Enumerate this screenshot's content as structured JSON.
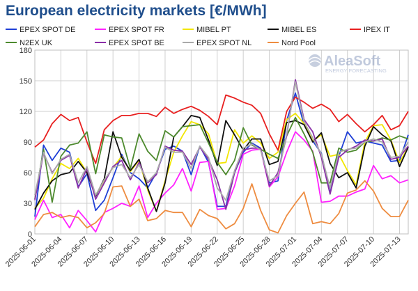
{
  "chart_data": {
    "type": "line",
    "title": "European electricity markets [€/MWh]",
    "xlabel": "",
    "ylabel": "",
    "ylim": [
      0,
      180
    ],
    "yticks": [
      0,
      30,
      60,
      90,
      120,
      150,
      180
    ],
    "grid": true,
    "legend_position": "top",
    "x": [
      "2025-06-01",
      "2025-06-02",
      "2025-06-03",
      "2025-06-04",
      "2025-06-05",
      "2025-06-06",
      "2025-06-07",
      "2025-06-08",
      "2025-06-09",
      "2025-06-10",
      "2025-06-11",
      "2025-06-12",
      "2025-06-13",
      "2025-06-14",
      "2025-06-15",
      "2025-06-16",
      "2025-06-17",
      "2025-06-18",
      "2025-06-19",
      "2025-06-20",
      "2025-06-21",
      "2025-06-22",
      "2025-06-23",
      "2025-06-24",
      "2025-06-25",
      "2025-06-26",
      "2025-06-27",
      "2025-06-28",
      "2025-06-29",
      "2025-06-30",
      "2025-07-01",
      "2025-07-02",
      "2025-07-03",
      "2025-07-04",
      "2025-07-05",
      "2025-07-06",
      "2025-07-07",
      "2025-07-08",
      "2025-07-09",
      "2025-07-10",
      "2025-07-11",
      "2025-07-12",
      "2025-07-13",
      "2025-07-14"
    ],
    "xtick_labels": [
      "2025-06-01",
      "2025-06-04",
      "2025-06-07",
      "2025-06-10",
      "2025-06-13",
      "2025-06-16",
      "2025-06-19",
      "2025-06-22",
      "2025-06-25",
      "2025-06-28",
      "2025-07-01",
      "2025-07-04",
      "2025-07-07",
      "2025-07-10",
      "2025-07-13"
    ],
    "series": [
      {
        "name": "EPEX SPOT DE",
        "color": "#1f3fd6",
        "values": [
          17,
          87,
          72,
          84,
          80,
          46,
          59,
          23,
          33,
          55,
          78,
          60,
          54,
          45,
          60,
          83,
          86,
          81,
          58,
          86,
          70,
          27,
          27,
          60,
          80,
          89,
          84,
          50,
          52,
          111,
          138,
          107,
          91,
          79,
          40,
          76,
          100,
          89,
          91,
          89,
          87,
          71,
          72,
          97
        ]
      },
      {
        "name": "EPEX SPOT FR",
        "color": "#ff22ff",
        "values": [
          14,
          33,
          16,
          19,
          6,
          23,
          13,
          2,
          21,
          25,
          30,
          27,
          47,
          16,
          30,
          40,
          48,
          64,
          42,
          70,
          71,
          24,
          25,
          47,
          78,
          82,
          83,
          46,
          56,
          80,
          100,
          92,
          81,
          31,
          32,
          37,
          37,
          41,
          44,
          67,
          54,
          57,
          50,
          53
        ]
      },
      {
        "name": "MIBEL PT",
        "color": "#f2e600",
        "values": [
          25,
          35,
          54,
          69,
          64,
          74,
          60,
          38,
          52,
          65,
          76,
          61,
          72,
          43,
          22,
          52,
          80,
          96,
          110,
          107,
          98,
          69,
          70,
          102,
          89,
          96,
          89,
          74,
          80,
          112,
          118,
          108,
          91,
          97,
          76,
          78,
          62,
          48,
          90,
          106,
          107,
          92,
          70,
          85
        ]
      },
      {
        "name": "MIBEL ES",
        "color": "#111111",
        "values": [
          24,
          40,
          52,
          58,
          60,
          71,
          60,
          37,
          54,
          100,
          75,
          62,
          73,
          45,
          22,
          50,
          95,
          105,
          116,
          114,
          92,
          67,
          111,
          97,
          82,
          93,
          93,
          68,
          71,
          109,
          111,
          107,
          90,
          99,
          69,
          55,
          60,
          45,
          86,
          105,
          97,
          91,
          66,
          85
        ]
      },
      {
        "name": "IPEX IT",
        "color": "#e82020",
        "values": [
          85,
          92,
          108,
          117,
          111,
          114,
          90,
          69,
          102,
          111,
          116,
          116,
          118,
          118,
          115,
          124,
          118,
          122,
          125,
          121,
          115,
          107,
          136,
          133,
          129,
          126,
          118,
          98,
          82,
          120,
          134,
          129,
          123,
          127,
          122,
          110,
          117,
          108,
          100,
          107,
          116,
          102,
          106,
          120
        ]
      },
      {
        "name": "N2EX UK",
        "color": "#4d8a2e",
        "values": [
          34,
          83,
          31,
          76,
          87,
          89,
          100,
          59,
          97,
          95,
          94,
          64,
          98,
          81,
          72,
          101,
          95,
          105,
          106,
          107,
          89,
          70,
          58,
          72,
          104,
          87,
          83,
          78,
          74,
          96,
          114,
          98,
          80,
          50,
          50,
          84,
          80,
          82,
          90,
          91,
          94,
          92,
          96,
          93
        ]
      },
      {
        "name": "EPEX SPOT BE",
        "color": "#8a2fa8",
        "values": [
          33,
          79,
          60,
          72,
          77,
          45,
          64,
          34,
          50,
          66,
          72,
          53,
          70,
          50,
          58,
          86,
          82,
          81,
          68,
          85,
          73,
          53,
          24,
          60,
          82,
          84,
          84,
          47,
          60,
          96,
          151,
          112,
          100,
          75,
          39,
          75,
          82,
          86,
          92,
          91,
          93,
          73,
          75,
          86
        ]
      },
      {
        "name": "EPEX SPOT NL",
        "color": "#aaaaaa",
        "values": [
          38,
          80,
          59,
          73,
          78,
          50,
          66,
          38,
          53,
          65,
          68,
          55,
          68,
          51,
          60,
          85,
          80,
          80,
          64,
          86,
          75,
          45,
          33,
          62,
          84,
          88,
          82,
          52,
          57,
          98,
          149,
          110,
          94,
          78,
          45,
          80,
          83,
          84,
          90,
          93,
          90,
          75,
          76,
          90
        ]
      },
      {
        "name": "Nord Pool",
        "color": "#ee8c40",
        "values": [
          7,
          19,
          21,
          16,
          18,
          16,
          6,
          11,
          20,
          46,
          47,
          27,
          34,
          13,
          15,
          23,
          21,
          21,
          7,
          24,
          18,
          15,
          5,
          10,
          25,
          49,
          23,
          4,
          1,
          18,
          30,
          41,
          10,
          12,
          10,
          20,
          40,
          43,
          52,
          42,
          25,
          17,
          17,
          33
        ]
      }
    ],
    "legend": [
      "EPEX SPOT DE",
      "EPEX SPOT FR",
      "MIBEL PT",
      "MIBEL ES",
      "IPEX IT",
      "N2EX UK",
      "EPEX SPOT BE",
      "EPEX SPOT NL",
      "Nord Pool"
    ]
  },
  "logo": {
    "name": "AleaSoft",
    "tagline": "ENERGY FORECASTING"
  }
}
